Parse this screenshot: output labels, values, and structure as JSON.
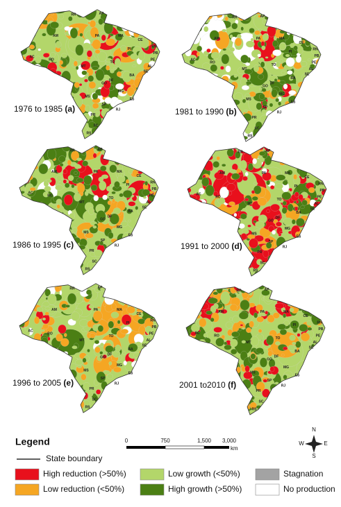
{
  "panels": [
    {
      "period": "1976 to 1985",
      "tag": "(a)"
    },
    {
      "period": "1981 to 1990",
      "tag": "(b)"
    },
    {
      "period": "1986 to 1995",
      "tag": "(c)"
    },
    {
      "period": "1991 to 2000",
      "tag": "(d)"
    },
    {
      "period": "1996 to 2005",
      "tag": "(e)"
    },
    {
      "period": "2001 to2010",
      "tag": "(f)"
    }
  ],
  "state_labels": [
    "RR",
    "AP",
    "AM",
    "PA",
    "MA",
    "CE",
    "RN",
    "PB",
    "PE",
    "AL",
    "SE",
    "PI",
    "AC",
    "RO",
    "TO",
    "BA",
    "MT",
    "GO",
    "DF",
    "MG",
    "ES",
    "MS",
    "SP",
    "RJ",
    "PR",
    "SC",
    "RS"
  ],
  "legend": {
    "title": "Legend",
    "boundary": "State boundary",
    "items": [
      {
        "name": "High reduction (>50%)",
        "color": "#e8101c"
      },
      {
        "name": "Low growth (<50%)",
        "color": "#b3d66a"
      },
      {
        "name": "Stagnation",
        "color": "#a3a3a3"
      },
      {
        "name": "Low reduction (<50%)",
        "color": "#f5a623"
      },
      {
        "name": "High growth (>50%)",
        "color": "#4b7f14"
      },
      {
        "name": "No production",
        "color": "#ffffff"
      }
    ]
  },
  "scale_bar": {
    "labels": [
      "0",
      "750",
      "1,500",
      "3,000"
    ],
    "unit": "km"
  },
  "compass": {
    "north": "N",
    "south": "S",
    "east": "E",
    "west": "W"
  }
}
